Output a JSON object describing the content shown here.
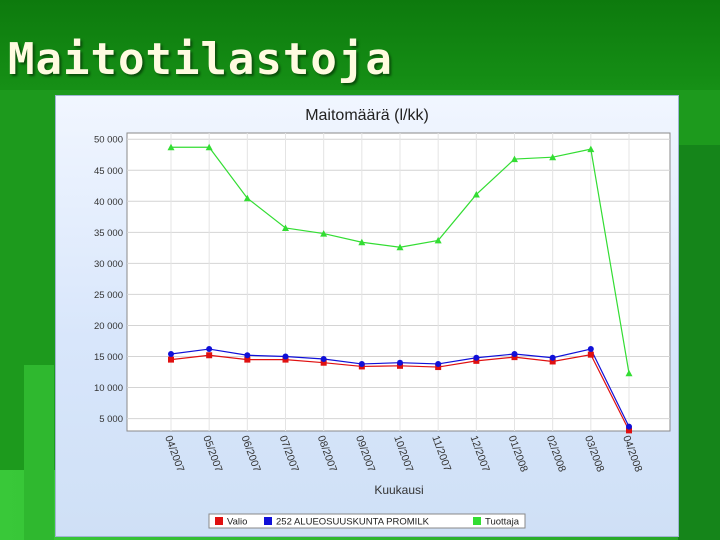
{
  "slide": {
    "title": "Maitotilastoja"
  },
  "chart_data": {
    "type": "line",
    "title": "Maitomäärä (l/kk)",
    "xlabel": "Kuukausi",
    "ylabel": "",
    "ylim": [
      3000,
      51000
    ],
    "yticks": [
      5000,
      10000,
      15000,
      20000,
      25000,
      30000,
      35000,
      40000,
      45000,
      50000
    ],
    "ytick_labels": [
      "5 000",
      "10 000",
      "15 000",
      "20 000",
      "25 000",
      "30 000",
      "35 000",
      "40 000",
      "45 000",
      "50 000"
    ],
    "grid": true,
    "legend_position": "bottom",
    "categories": [
      "04/2007",
      "05/2007",
      "06/2007",
      "07/2007",
      "08/2007",
      "09/2007",
      "10/2007",
      "11/2007",
      "12/2007",
      "01/2008",
      "02/2008",
      "03/2008",
      "04/2008"
    ],
    "series": [
      {
        "name": "Valio",
        "color": "#e01010",
        "marker": "square",
        "values": [
          14500,
          15200,
          14500,
          14500,
          14000,
          13400,
          13500,
          13300,
          14300,
          14900,
          14200,
          15300,
          3100
        ]
      },
      {
        "name": "252 ALUEOSUUSKUNTA PROMILK",
        "color": "#1010d8",
        "marker": "circle",
        "values": [
          15400,
          16200,
          15200,
          15000,
          14600,
          13800,
          14000,
          13800,
          14800,
          15400,
          14800,
          16200,
          3700
        ]
      },
      {
        "name": "Tuottaja",
        "color": "#33dd33",
        "marker": "triangle",
        "values": [
          48700,
          48700,
          40500,
          35700,
          34800,
          33400,
          32600,
          33700,
          41100,
          46800,
          47100,
          48400,
          12300
        ]
      }
    ]
  }
}
